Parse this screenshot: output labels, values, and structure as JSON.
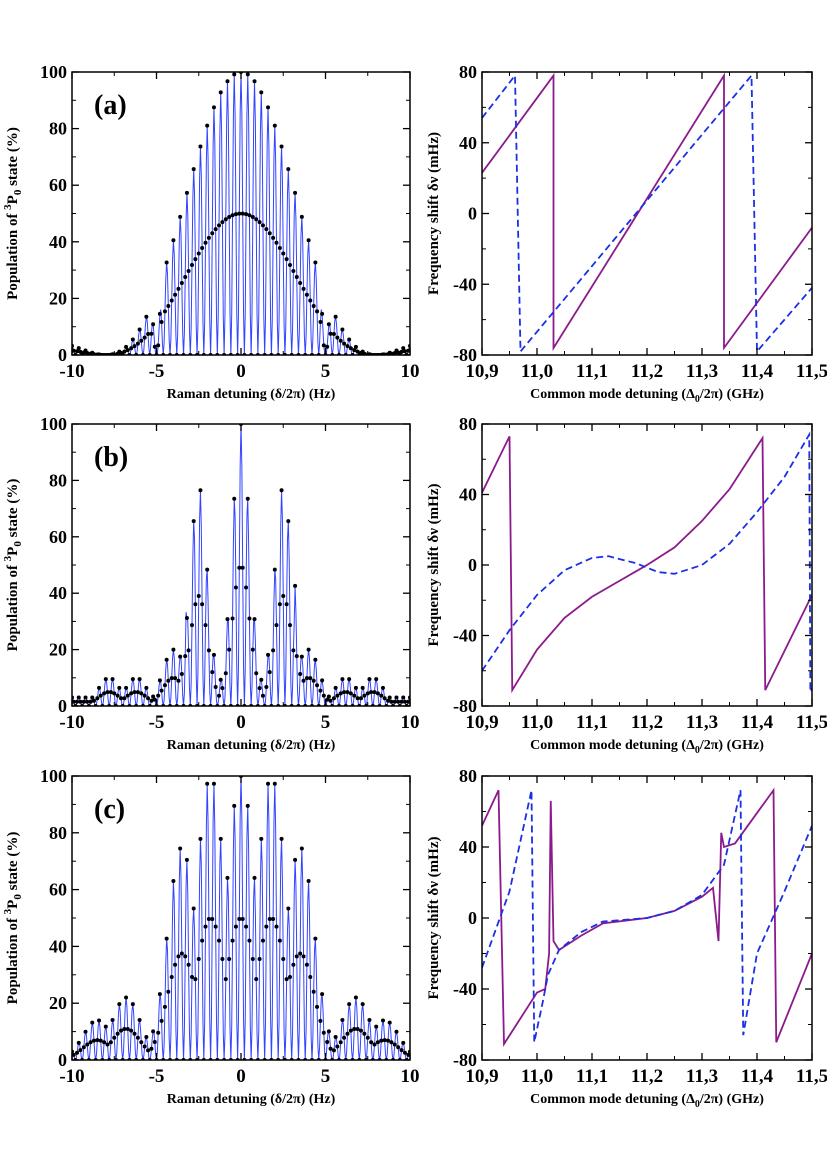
{
  "colors": {
    "population_line": "#3344ff",
    "population_marker": "#000000",
    "shift_solid": "#8b1a8b",
    "shift_dashed": "#1a2fe6",
    "axis": "#000000"
  },
  "chart_data": [
    {
      "type": "line",
      "panel": "(a)",
      "panel_label": "(a)",
      "xlabel": "Raman detuning (δ/2π) (Hz)",
      "ylabel_prefix": "Population of ",
      "ylabel_sup": "3",
      "ylabel_mid": "P",
      "ylabel_sub": "0",
      "ylabel_suffix": " state (%)",
      "xlim": [
        -10,
        10
      ],
      "ylim": [
        0,
        100
      ],
      "xticks": [
        -10,
        -5,
        0,
        5,
        10
      ],
      "xtick_labels": [
        "-10",
        "-5",
        "0",
        "5",
        "10"
      ],
      "yticks": [
        0,
        20,
        40,
        60,
        80,
        100
      ],
      "ytick_labels": [
        "0",
        "20",
        "40",
        "60",
        "80",
        "100"
      ],
      "markers": true,
      "model": "single_pulse",
      "envelope_peaks": [
        {
          "x": -7.6,
          "y": 11
        },
        {
          "x": 0,
          "y": 100
        },
        {
          "x": 7.6,
          "y": 11
        }
      ],
      "series": [
        {
          "style": "solid-with-dots",
          "x_range": [
            -10,
            10
          ],
          "fringe_period_hz": 0.4
        }
      ]
    },
    {
      "type": "line",
      "panel": "(a')",
      "xlabel_main": "Common mode detuning (Δ",
      "xlabel_sub": "0",
      "xlabel_tail": "/2π) (GHz)",
      "ylabel": "Frequency shift δν (mHz)",
      "xlim": [
        10.9,
        11.5
      ],
      "ylim": [
        -80,
        80
      ],
      "xticks": [
        10.9,
        11.0,
        11.1,
        11.2,
        11.3,
        11.4,
        11.5
      ],
      "xtick_labels": [
        "10,9",
        "11,0",
        "11,1",
        "11,2",
        "11,3",
        "11,4",
        "11,5"
      ],
      "yticks": [
        -80,
        -40,
        0,
        40,
        80
      ],
      "ytick_labels": [
        "-80",
        "-40",
        "0",
        "40",
        "80"
      ],
      "series": [
        {
          "style": "solid",
          "x": [
            10.9,
            11.03,
            11.03,
            11.34,
            11.34,
            11.5
          ],
          "y": [
            23,
            78,
            -76,
            78,
            -76,
            -8
          ]
        },
        {
          "style": "dashed",
          "x": [
            10.9,
            10.96,
            10.97,
            11.39,
            11.4,
            11.5
          ],
          "y": [
            54,
            78,
            -78,
            78,
            -78,
            -42
          ]
        }
      ]
    },
    {
      "type": "line",
      "panel": "(b)",
      "panel_label": "(b)",
      "xlabel": "Raman detuning (δ/2π) (Hz)",
      "ylabel_prefix": "Population of ",
      "ylabel_sup": "3",
      "ylabel_mid": "P",
      "ylabel_sub": "0",
      "ylabel_suffix": " state (%)",
      "xlim": [
        -10,
        10
      ],
      "ylim": [
        0,
        100
      ],
      "xticks": [
        -10,
        -5,
        0,
        5,
        10
      ],
      "xtick_labels": [
        "-10",
        "-5",
        "0",
        "5",
        "10"
      ],
      "yticks": [
        0,
        20,
        40,
        60,
        80,
        100
      ],
      "ytick_labels": [
        "0",
        "20",
        "40",
        "60",
        "80",
        "100"
      ],
      "markers": true,
      "model": "double_modulated",
      "envelope_peaks": [
        {
          "x": -7.8,
          "y": 10
        },
        {
          "x": -6.2,
          "y": 10
        },
        {
          "x": -4,
          "y": 20
        },
        {
          "x": -2.5,
          "y": 78
        },
        {
          "x": 0,
          "y": 100
        },
        {
          "x": 2.5,
          "y": 78
        },
        {
          "x": 4,
          "y": 20
        },
        {
          "x": 6.2,
          "y": 10
        },
        {
          "x": 7.8,
          "y": 10
        }
      ],
      "series": [
        {
          "style": "solid-with-dots",
          "x_range": [
            -10,
            10
          ],
          "fringe_period_hz": 0.4
        }
      ]
    },
    {
      "type": "line",
      "panel": "(b')",
      "xlabel_main": "Common mode detuning (Δ",
      "xlabel_sub": "0",
      "xlabel_tail": "/2π) (GHz)",
      "ylabel": "Frequency shift δν (mHz)",
      "xlim": [
        10.9,
        11.5
      ],
      "ylim": [
        -80,
        80
      ],
      "xticks": [
        10.9,
        11.0,
        11.1,
        11.2,
        11.3,
        11.4,
        11.5
      ],
      "xtick_labels": [
        "10,9",
        "11,0",
        "11,1",
        "11,2",
        "11,3",
        "11,4",
        "11,5"
      ],
      "yticks": [
        -80,
        -40,
        0,
        40,
        80
      ],
      "ytick_labels": [
        "-80",
        "-40",
        "0",
        "40",
        "80"
      ],
      "series": [
        {
          "style": "solid",
          "x": [
            10.9,
            10.95,
            10.955,
            11.0,
            11.05,
            11.1,
            11.15,
            11.2,
            11.25,
            11.3,
            11.35,
            11.41,
            11.415,
            11.5
          ],
          "y": [
            41,
            73,
            -71,
            -48,
            -30,
            -18,
            -9,
            0,
            10,
            25,
            43,
            72,
            -71,
            -17
          ]
        },
        {
          "style": "dashed",
          "x": [
            10.9,
            10.95,
            11.0,
            11.05,
            11.1,
            11.13,
            11.18,
            11.22,
            11.25,
            11.3,
            11.35,
            11.4,
            11.45,
            11.495,
            11.497,
            11.5
          ],
          "y": [
            -60,
            -37,
            -17,
            -3,
            4,
            5,
            1,
            -4,
            -5,
            0,
            12,
            30,
            50,
            74,
            -72,
            -70
          ]
        }
      ]
    },
    {
      "type": "line",
      "panel": "(c)",
      "panel_label": "(c)",
      "xlabel": "Raman detuning (δ/2π) (Hz)",
      "ylabel_prefix": "Population of ",
      "ylabel_sup": "3",
      "ylabel_mid": "P",
      "ylabel_sub": "0",
      "ylabel_suffix": " state (%)",
      "xlim": [
        -10,
        10
      ],
      "ylim": [
        0,
        100
      ],
      "xticks": [
        -10,
        -5,
        0,
        5,
        10
      ],
      "xtick_labels": [
        "-10",
        "-5",
        "0",
        "5",
        "10"
      ],
      "yticks": [
        0,
        20,
        40,
        60,
        80,
        100
      ],
      "ytick_labels": [
        "0",
        "20",
        "40",
        "60",
        "80",
        "100"
      ],
      "markers": true,
      "model": "triple_modulated",
      "envelope_peaks": [
        {
          "x": -8.5,
          "y": 14
        },
        {
          "x": -6.8,
          "y": 22
        },
        {
          "x": -3.5,
          "y": 75
        },
        {
          "x": -1.8,
          "y": 100
        },
        {
          "x": 0,
          "y": 100
        },
        {
          "x": 1.8,
          "y": 100
        },
        {
          "x": 3.5,
          "y": 75
        },
        {
          "x": 6.8,
          "y": 22
        },
        {
          "x": 8.5,
          "y": 14
        }
      ],
      "series": [
        {
          "style": "solid-with-dots",
          "x_range": [
            -10,
            10
          ],
          "fringe_period_hz": 0.4
        }
      ]
    },
    {
      "type": "line",
      "panel": "(c')",
      "xlabel_main": "Common mode detuning (Δ",
      "xlabel_sub": "0",
      "xlabel_tail": "/2π) (GHz)",
      "ylabel": "Frequency shift δν (mHz)",
      "xlim": [
        10.9,
        11.5
      ],
      "ylim": [
        -80,
        80
      ],
      "xticks": [
        10.9,
        11.0,
        11.1,
        11.2,
        11.3,
        11.4,
        11.5
      ],
      "xtick_labels": [
        "10,9",
        "11,0",
        "11,1",
        "11,2",
        "11,3",
        "11,4",
        "11,5"
      ],
      "yticks": [
        -80,
        -40,
        0,
        40,
        80
      ],
      "ytick_labels": [
        "-80",
        "-40",
        "0",
        "40",
        "80"
      ],
      "series": [
        {
          "style": "solid",
          "x": [
            10.9,
            10.93,
            10.94,
            11.0,
            11.015,
            11.022,
            11.025,
            11.03,
            11.04,
            11.08,
            11.12,
            11.2,
            11.25,
            11.3,
            11.32,
            11.33,
            11.335,
            11.34,
            11.36,
            11.43,
            11.435,
            11.5
          ],
          "y": [
            52,
            72,
            -71,
            -42,
            -40,
            -20,
            66,
            -13,
            -18,
            -10,
            -3,
            0,
            4,
            12,
            17,
            -13,
            48,
            40,
            42,
            72,
            -70,
            -20
          ]
        },
        {
          "style": "dashed",
          "x": [
            10.9,
            10.95,
            10.99,
            10.995,
            11.01,
            11.02,
            11.04,
            11.08,
            11.12,
            11.2,
            11.25,
            11.3,
            11.34,
            11.37,
            11.375,
            11.4,
            11.45,
            11.5
          ],
          "y": [
            -28,
            15,
            72,
            -70,
            -48,
            -32,
            -18,
            -8,
            -2,
            0,
            4,
            13,
            30,
            72,
            -66,
            -20,
            15,
            52
          ]
        }
      ]
    }
  ]
}
